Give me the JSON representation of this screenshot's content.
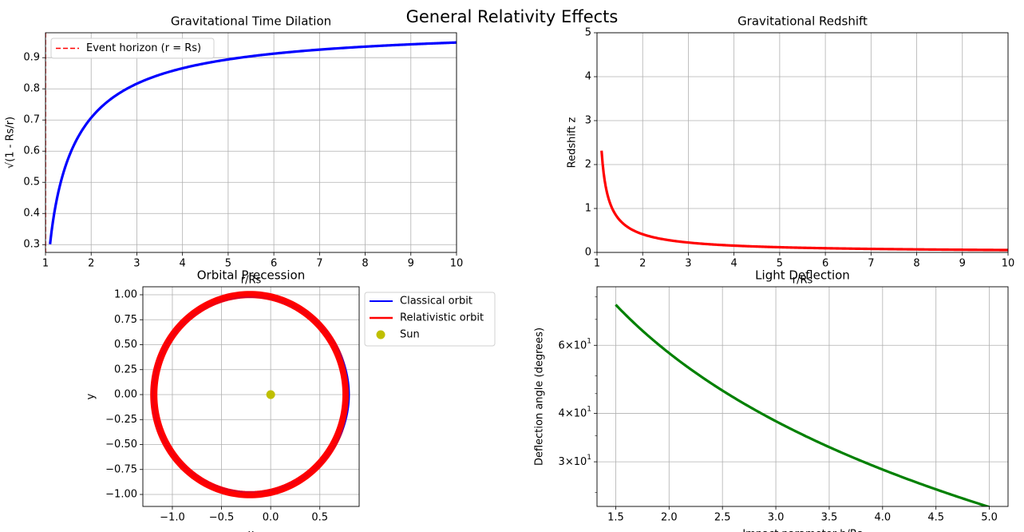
{
  "figure": {
    "suptitle": "General Relativity Effects"
  },
  "chart_data": [
    {
      "id": "time_dilation",
      "type": "line",
      "title": "Gravitational Time Dilation",
      "xlabel": "r/Rs",
      "ylabel": "√(1 - Rs/r)",
      "xlim": [
        1,
        10
      ],
      "ylim": [
        0.275,
        0.98
      ],
      "xticks": [
        "1",
        "2",
        "3",
        "4",
        "5",
        "6",
        "7",
        "8",
        "9",
        "10"
      ],
      "yticks": [
        "0.3",
        "0.4",
        "0.5",
        "0.6",
        "0.7",
        "0.8",
        "0.9"
      ],
      "grid": true,
      "legend": {
        "placement": "upper-left",
        "entries": [
          "Event horizon (r = Rs)"
        ]
      },
      "series": [
        {
          "role": "curve",
          "color": "#0000ff",
          "formula": "sqrt(1 - 1/x)",
          "x_range": [
            1.1,
            10
          ]
        },
        {
          "role": "event-horizon",
          "name": "Event horizon (r = Rs)",
          "color": "#ff0000",
          "style": "dashed",
          "x": 1
        }
      ]
    },
    {
      "id": "redshift",
      "type": "line",
      "title": "Gravitational Redshift",
      "xlabel": "r/Rs",
      "ylabel": "Redshift z",
      "xlim": [
        1,
        10
      ],
      "ylim": [
        0,
        5
      ],
      "xticks": [
        "1",
        "2",
        "3",
        "4",
        "5",
        "6",
        "7",
        "8",
        "9",
        "10"
      ],
      "yticks": [
        "0",
        "1",
        "2",
        "3",
        "4",
        "5"
      ],
      "grid": true,
      "series": [
        {
          "role": "curve",
          "color": "#ff0000",
          "formula": "1/sqrt(1 - 1/x) - 1",
          "x_range": [
            1.1,
            10
          ]
        }
      ]
    },
    {
      "id": "precession",
      "type": "line",
      "title": "Orbital Precession",
      "xlabel": "x",
      "ylabel": "y",
      "xlim": [
        -1.3,
        0.9
      ],
      "ylim": [
        -1.12,
        1.08
      ],
      "xticks": [
        "−1.0",
        "−0.5",
        "0.0",
        "0.5"
      ],
      "yticks": [
        "−1.00",
        "−0.75",
        "−0.50",
        "−0.25",
        "0.00",
        "0.25",
        "0.50",
        "0.75",
        "1.00"
      ],
      "grid": true,
      "aspect": "equal",
      "legend": {
        "placement": "outside-upper-right",
        "entries": [
          "Classical orbit",
          "Relativistic orbit",
          "Sun"
        ]
      },
      "series": [
        {
          "name": "Classical orbit",
          "color": "#0000ff",
          "semi_major": 1.0,
          "eccentricity": 0.2
        },
        {
          "name": "Relativistic orbit",
          "color": "#ff0000",
          "semi_major": 1.0,
          "eccentricity": 0.2,
          "precession_band": 0.045
        },
        {
          "name": "Sun",
          "color": "#bfbf00",
          "type": "scatter",
          "x": [
            0
          ],
          "y": [
            0
          ]
        }
      ]
    },
    {
      "id": "deflection",
      "type": "line",
      "title": "Light Deflection",
      "xlabel": "Impact parameter b/Rs",
      "ylabel": "Deflection angle (degrees)",
      "xlim": [
        1.325,
        5.175
      ],
      "ylim": [
        23.0,
        85.0
      ],
      "yscale": "log",
      "xticks": [
        "1.5",
        "2.0",
        "2.5",
        "3.0",
        "3.5",
        "4.0",
        "4.5",
        "5.0"
      ],
      "yticks": [
        {
          "mantissa": "3",
          "exp": "1"
        },
        {
          "mantissa": "4",
          "exp": "1"
        },
        {
          "mantissa": "6",
          "exp": "1"
        }
      ],
      "grid": true,
      "series": [
        {
          "role": "curve",
          "color": "#008000",
          "formula": "114.59/x",
          "x_range": [
            1.5,
            5.0
          ]
        }
      ]
    }
  ]
}
